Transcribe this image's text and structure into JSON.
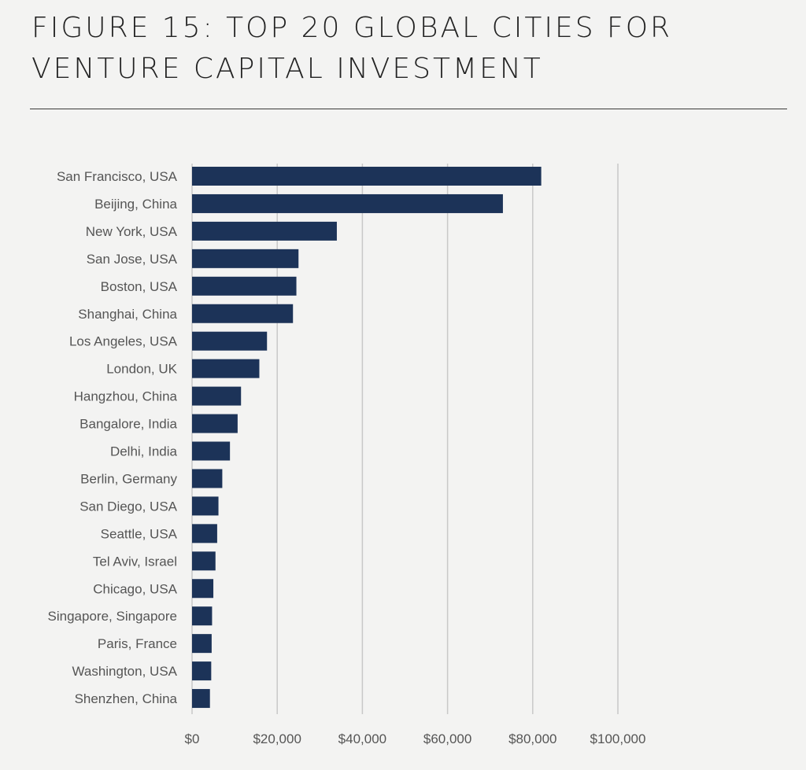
{
  "figure": {
    "title": "FIGURE 15: TOP 20 GLOBAL CITIES FOR VENTURE CAPITAL INVESTMENT"
  },
  "colors": {
    "bar": "#1c3358",
    "grid": "#c8c8c8",
    "background": "#f3f3f2",
    "text": "#555555"
  },
  "chart_data": {
    "type": "bar",
    "orientation": "horizontal",
    "title": "",
    "xlabel": "",
    "ylabel": "",
    "categories": [
      "San Francisco, USA",
      "Beijing, China",
      "New York, USA",
      "San Jose, USA",
      "Boston, USA",
      "Shanghai, China",
      "Los Angeles, USA",
      "London, UK",
      "Hangzhou, China",
      "Bangalore, India",
      "Delhi, India",
      "Berlin, Germany",
      "San Diego, USA",
      "Seattle, USA",
      "Tel Aviv, Israel",
      "Chicago, USA",
      "Singapore, Singapore",
      "Paris, France",
      "Washington, USA",
      "Shenzhen, China"
    ],
    "values": [
      82000,
      73000,
      34000,
      25000,
      24500,
      23700,
      17600,
      15800,
      11500,
      10700,
      8900,
      7100,
      6200,
      5900,
      5500,
      5000,
      4700,
      4600,
      4500,
      4200
    ],
    "xlim": [
      0,
      100000
    ],
    "xticks": [
      0,
      20000,
      40000,
      60000,
      80000,
      100000
    ],
    "xtick_labels": [
      "$0",
      "$20,000",
      "$40,000",
      "$60,000",
      "$80,000",
      "$100,000"
    ],
    "grid": true
  }
}
